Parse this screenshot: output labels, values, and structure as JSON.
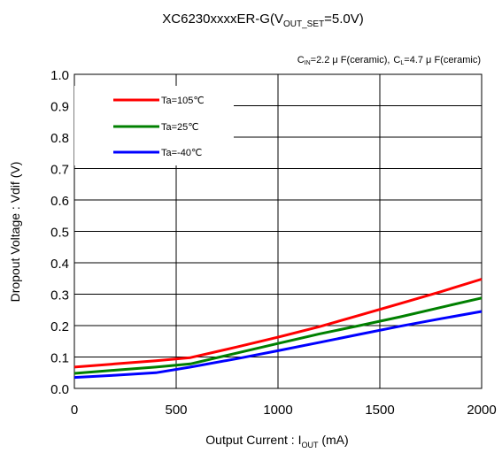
{
  "chart_data": {
    "type": "line",
    "title": {
      "main": "XC6230xxxxER-G(V",
      "sub": "OUT_SET",
      "tail": "=5.0V)"
    },
    "conditions": {
      "cin_label": "C",
      "cin_sub": "IN",
      "cin_value": "=2.2 μ F(ceramic),",
      "cl_label": "C",
      "cl_sub": "L",
      "cl_value": "=4.7 μ F(ceramic)"
    },
    "xlabel": {
      "main": "Output Current : I",
      "sub": "OUT",
      "tail": " (mA)"
    },
    "ylabel": "Dropout Voltage : Vdif (V)",
    "xlim": [
      0,
      2000
    ],
    "ylim": [
      0,
      1.0
    ],
    "x_ticks": [
      "0",
      "500",
      "1000",
      "1500",
      "2000"
    ],
    "y_ticks": [
      "0.0",
      "0.1",
      "0.2",
      "0.3",
      "0.4",
      "0.5",
      "0.6",
      "0.7",
      "0.8",
      "0.9",
      "1.0"
    ],
    "grid": true,
    "legend_position": "top-left",
    "series": [
      {
        "name": "Ta=105℃",
        "color": "#ff0000",
        "x": [
          0,
          200,
          400,
          570,
          800,
          1000,
          1200,
          1400,
          1600,
          1800,
          2000
        ],
        "y": [
          0.068,
          0.078,
          0.088,
          0.098,
          0.132,
          0.163,
          0.196,
          0.233,
          0.27,
          0.308,
          0.348
        ]
      },
      {
        "name": "Ta=25℃",
        "color": "#008000",
        "x": [
          0,
          200,
          400,
          570,
          800,
          1000,
          1200,
          1400,
          1600,
          1800,
          2000
        ],
        "y": [
          0.048,
          0.058,
          0.068,
          0.078,
          0.113,
          0.143,
          0.173,
          0.2,
          0.228,
          0.258,
          0.288
        ]
      },
      {
        "name": "Ta=-40℃",
        "color": "#0000ff",
        "x": [
          0,
          200,
          400,
          570,
          800,
          1000,
          1200,
          1400,
          1600,
          1800,
          2000
        ],
        "y": [
          0.035,
          0.042,
          0.05,
          0.068,
          0.095,
          0.12,
          0.146,
          0.172,
          0.198,
          0.222,
          0.245
        ]
      }
    ]
  }
}
